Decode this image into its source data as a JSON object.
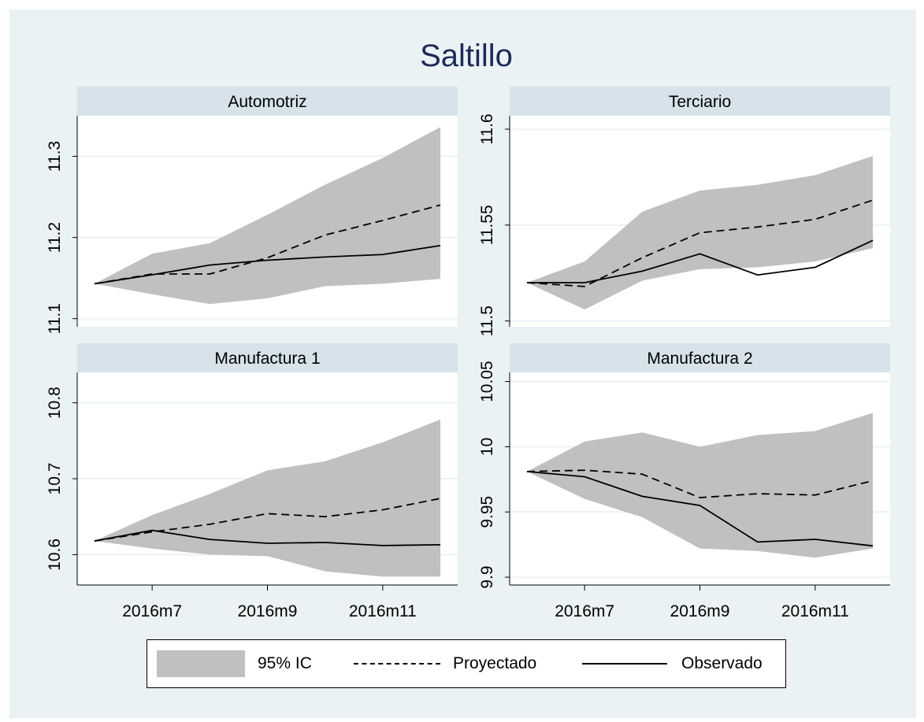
{
  "chart_title": "Saltillo",
  "legend": {
    "ci_label": "95% IC",
    "projected_label": "Proyectado",
    "observed_label": "Observado"
  },
  "colors": {
    "background": "#eaf2f3",
    "strip": "#d6e3ea",
    "ci_band": "#c0c0c0",
    "title": "#1a2b5a",
    "lines": "#000000"
  },
  "chart_data": [
    {
      "type": "line",
      "panel": "Automotriz",
      "x": [
        "2016m6",
        "2016m7",
        "2016m8",
        "2016m9",
        "2016m10",
        "2016m11",
        "2016m12"
      ],
      "x_ticks": [
        "2016m7",
        "2016m9",
        "2016m11"
      ],
      "ylim": [
        11.09,
        11.35
      ],
      "y_ticks": [
        11.1,
        11.2,
        11.3
      ],
      "series": [
        {
          "name": "Observado",
          "values": [
            11.143,
            11.154,
            11.166,
            11.172,
            11.176,
            11.179,
            11.19
          ]
        },
        {
          "name": "Proyectado",
          "values": [
            11.143,
            11.155,
            11.155,
            11.175,
            11.203,
            11.221,
            11.24
          ]
        },
        {
          "name": "95% IC",
          "lower": [
            11.143,
            11.13,
            11.118,
            11.125,
            11.14,
            11.143,
            11.149
          ],
          "upper": [
            11.143,
            11.18,
            11.193,
            11.228,
            11.265,
            11.298,
            11.336
          ]
        }
      ]
    },
    {
      "type": "line",
      "panel": "Terciario",
      "x": [
        "2016m6",
        "2016m7",
        "2016m8",
        "2016m9",
        "2016m10",
        "2016m11",
        "2016m12"
      ],
      "x_ticks": [
        "2016m7",
        "2016m9",
        "2016m11"
      ],
      "ylim": [
        11.497,
        11.607
      ],
      "y_ticks": [
        11.5,
        11.55,
        11.6
      ],
      "series": [
        {
          "name": "Observado",
          "values": [
            11.52,
            11.52,
            11.526,
            11.535,
            11.524,
            11.528,
            11.542
          ]
        },
        {
          "name": "Proyectado",
          "values": [
            11.52,
            11.518,
            11.533,
            11.546,
            11.549,
            11.553,
            11.563
          ]
        },
        {
          "name": "95% IC",
          "lower": [
            11.52,
            11.506,
            11.521,
            11.527,
            11.528,
            11.531,
            11.538
          ],
          "upper": [
            11.52,
            11.531,
            11.557,
            11.568,
            11.571,
            11.576,
            11.586
          ]
        }
      ]
    },
    {
      "type": "line",
      "panel": "Manufactura 1",
      "x": [
        "2016m6",
        "2016m7",
        "2016m8",
        "2016m9",
        "2016m10",
        "2016m11",
        "2016m12"
      ],
      "x_ticks": [
        "2016m7",
        "2016m9",
        "2016m11"
      ],
      "ylim": [
        10.56,
        10.84
      ],
      "y_ticks": [
        10.6,
        10.7,
        10.8
      ],
      "series": [
        {
          "name": "Observado",
          "values": [
            10.618,
            10.632,
            10.62,
            10.615,
            10.616,
            10.612,
            10.613
          ]
        },
        {
          "name": "Proyectado",
          "values": [
            10.618,
            10.63,
            10.64,
            10.654,
            10.65,
            10.659,
            10.674
          ]
        },
        {
          "name": "95% IC",
          "lower": [
            10.618,
            10.608,
            10.6,
            10.598,
            10.578,
            10.571,
            10.571
          ],
          "upper": [
            10.618,
            10.652,
            10.68,
            10.711,
            10.723,
            10.748,
            10.778
          ]
        }
      ]
    },
    {
      "type": "line",
      "panel": "Manufactura 2",
      "x": [
        "2016m6",
        "2016m7",
        "2016m8",
        "2016m9",
        "2016m10",
        "2016m11",
        "2016m12"
      ],
      "x_ticks": [
        "2016m7",
        "2016m9",
        "2016m11"
      ],
      "ylim": [
        9.894,
        10.057
      ],
      "y_ticks": [
        9.9,
        9.95,
        10,
        10.05
      ],
      "series": [
        {
          "name": "Observado",
          "values": [
            9.981,
            9.977,
            9.962,
            9.955,
            9.927,
            9.929,
            9.924
          ]
        },
        {
          "name": "Proyectado",
          "values": [
            9.981,
            9.982,
            9.979,
            9.961,
            9.964,
            9.963,
            9.974
          ]
        },
        {
          "name": "95% IC",
          "lower": [
            9.981,
            9.96,
            9.946,
            9.922,
            9.92,
            9.915,
            9.922
          ],
          "upper": [
            9.981,
            10.004,
            10.011,
            10.0,
            10.009,
            10.012,
            10.026
          ]
        }
      ]
    }
  ]
}
